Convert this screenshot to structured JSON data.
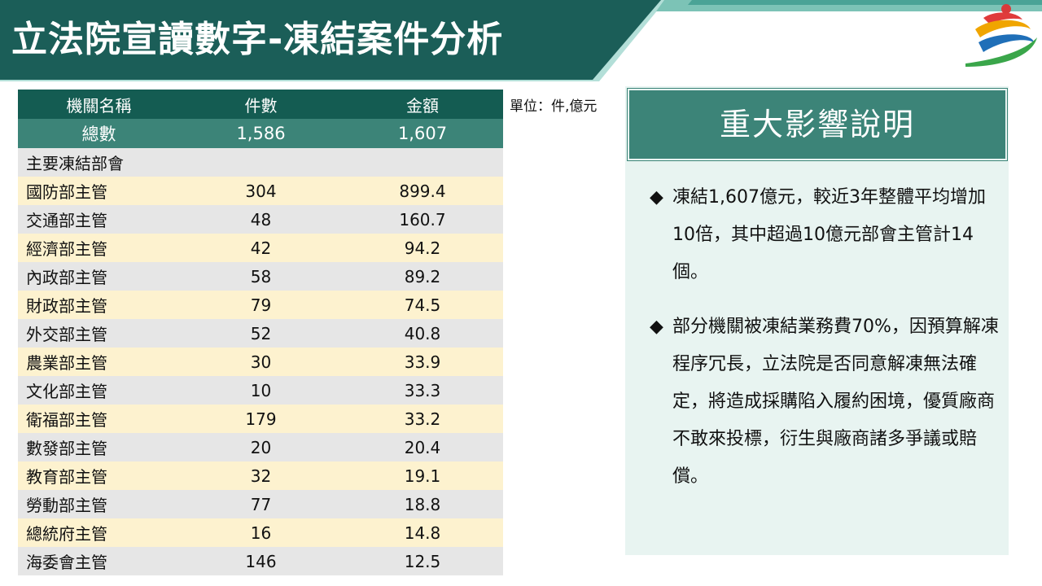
{
  "header": {
    "title": "立法院宣讀數字-凍結案件分析"
  },
  "colors": {
    "banner_dark": "#1b5e58",
    "banner_light": "#b3dfd8",
    "table_header": "#145c52",
    "table_total": "#3c8478",
    "row_yellow": "#fdf2cf",
    "row_gray": "#e6e6e6",
    "panel_bg": "#e8f4f1"
  },
  "logo": {
    "icon": "stylized-3-logo-icon"
  },
  "table": {
    "headers": [
      "機關名稱",
      "件數",
      "金額"
    ],
    "total": {
      "name": "總數",
      "count": "1,586",
      "amount": "1,607"
    },
    "section_label": "主要凍結部會",
    "rows": [
      {
        "name": "國防部主管",
        "count": "304",
        "amount": "899.4"
      },
      {
        "name": "交通部主管",
        "count": "48",
        "amount": "160.7"
      },
      {
        "name": "經濟部主管",
        "count": "42",
        "amount": "94.2"
      },
      {
        "name": "內政部主管",
        "count": "58",
        "amount": "89.2"
      },
      {
        "name": "財政部主管",
        "count": "79",
        "amount": "74.5"
      },
      {
        "name": "外交部主管",
        "count": "52",
        "amount": "40.8"
      },
      {
        "name": "農業部主管",
        "count": "30",
        "amount": "33.9"
      },
      {
        "name": "文化部主管",
        "count": "10",
        "amount": "33.3"
      },
      {
        "name": "衛福部主管",
        "count": "179",
        "amount": "33.2"
      },
      {
        "name": "數發部主管",
        "count": "20",
        "amount": "20.4"
      },
      {
        "name": "教育部主管",
        "count": "32",
        "amount": "19.1"
      },
      {
        "name": "勞動部主管",
        "count": "77",
        "amount": "18.8"
      },
      {
        "name": "總統府主管",
        "count": "16",
        "amount": "14.8"
      },
      {
        "name": "海委會主管",
        "count": "146",
        "amount": "12.5"
      }
    ]
  },
  "unit_label": "單位：件,億元",
  "panel": {
    "title": "重大影響說明",
    "bullet_symbol": "◆",
    "bullets": [
      "凍結1,607億元，較近3年整體平均增加10倍，其中超過10億元部會主管計14個。",
      "部分機關被凍結業務費70%，因預算解凍程序冗長，立法院是否同意解凍無法確定，將造成採購陷入履約困境，優質廠商不敢來投標，衍生與廠商諸多爭議或賠償。"
    ]
  }
}
